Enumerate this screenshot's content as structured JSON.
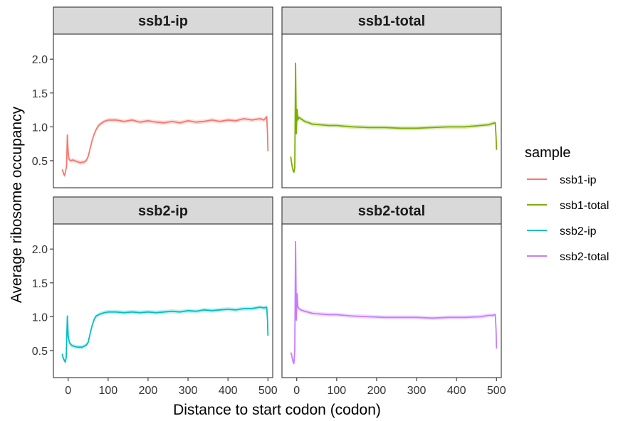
{
  "chart_data": {
    "type": "line",
    "xlabel": "Distance to start codon (codon)",
    "ylabel": "Average ribosome occupancy",
    "xlim": [
      -37,
      512
    ],
    "ylim": [
      0.1,
      2.37
    ],
    "xticks": [
      0,
      100,
      200,
      300,
      400,
      500
    ],
    "yticks": [
      0.5,
      1.0,
      1.5,
      2.0
    ],
    "ytick_labels": [
      "0.5",
      "1.0",
      "1.5",
      "2.0"
    ],
    "grid": false,
    "legend": {
      "title": "sample",
      "position": "right"
    },
    "panels": [
      {
        "title": "ssb1-ip",
        "series_name": "ssb1-ip",
        "color": "#F8766D",
        "points": [
          [
            -15,
            0.37
          ],
          [
            -13,
            0.34
          ],
          [
            -11,
            0.3
          ],
          [
            -9,
            0.28
          ],
          [
            -7,
            0.33
          ],
          [
            -4,
            0.42
          ],
          [
            -2,
            0.88
          ],
          [
            0,
            0.62
          ],
          [
            2,
            0.52
          ],
          [
            6,
            0.5
          ],
          [
            12,
            0.51
          ],
          [
            20,
            0.49
          ],
          [
            30,
            0.47
          ],
          [
            40,
            0.48
          ],
          [
            45,
            0.5
          ],
          [
            50,
            0.56
          ],
          [
            55,
            0.68
          ],
          [
            60,
            0.8
          ],
          [
            65,
            0.89
          ],
          [
            70,
            0.96
          ],
          [
            75,
            1.01
          ],
          [
            80,
            1.04
          ],
          [
            90,
            1.08
          ],
          [
            100,
            1.1
          ],
          [
            120,
            1.1
          ],
          [
            140,
            1.08
          ],
          [
            160,
            1.1
          ],
          [
            180,
            1.07
          ],
          [
            200,
            1.09
          ],
          [
            220,
            1.07
          ],
          [
            240,
            1.06
          ],
          [
            260,
            1.08
          ],
          [
            280,
            1.06
          ],
          [
            300,
            1.09
          ],
          [
            320,
            1.07
          ],
          [
            340,
            1.08
          ],
          [
            360,
            1.1
          ],
          [
            380,
            1.08
          ],
          [
            400,
            1.1
          ],
          [
            420,
            1.09
          ],
          [
            440,
            1.12
          ],
          [
            460,
            1.1
          ],
          [
            480,
            1.12
          ],
          [
            490,
            1.1
          ],
          [
            497,
            1.15
          ],
          [
            499,
            0.9
          ],
          [
            500,
            0.64
          ]
        ]
      },
      {
        "title": "ssb1-total",
        "series_name": "ssb1-total",
        "color": "#7CAE00",
        "points": [
          [
            -15,
            0.56
          ],
          [
            -13,
            0.47
          ],
          [
            -11,
            0.4
          ],
          [
            -9,
            0.35
          ],
          [
            -7,
            0.33
          ],
          [
            -5,
            0.4
          ],
          [
            -3,
            1.94
          ],
          [
            -1,
            0.9
          ],
          [
            1,
            1.26
          ],
          [
            3,
            1.1
          ],
          [
            5,
            1.14
          ],
          [
            10,
            1.12
          ],
          [
            20,
            1.08
          ],
          [
            40,
            1.04
          ],
          [
            60,
            1.03
          ],
          [
            80,
            1.02
          ],
          [
            100,
            1.02
          ],
          [
            140,
            1.0
          ],
          [
            180,
            0.99
          ],
          [
            220,
            0.99
          ],
          [
            260,
            0.98
          ],
          [
            300,
            0.98
          ],
          [
            340,
            0.99
          ],
          [
            380,
            1.0
          ],
          [
            420,
            1.0
          ],
          [
            460,
            1.02
          ],
          [
            480,
            1.03
          ],
          [
            490,
            1.05
          ],
          [
            497,
            1.06
          ],
          [
            499,
            0.85
          ],
          [
            500,
            0.66
          ]
        ]
      },
      {
        "title": "ssb2-ip",
        "series_name": "ssb2-ip",
        "color": "#00BFC4",
        "points": [
          [
            -15,
            0.45
          ],
          [
            -13,
            0.4
          ],
          [
            -11,
            0.37
          ],
          [
            -9,
            0.35
          ],
          [
            -7,
            0.33
          ],
          [
            -5,
            0.4
          ],
          [
            -2,
            1.01
          ],
          [
            0,
            0.72
          ],
          [
            3,
            0.62
          ],
          [
            8,
            0.58
          ],
          [
            15,
            0.56
          ],
          [
            25,
            0.55
          ],
          [
            35,
            0.55
          ],
          [
            45,
            0.58
          ],
          [
            50,
            0.62
          ],
          [
            55,
            0.75
          ],
          [
            60,
            0.87
          ],
          [
            65,
            0.96
          ],
          [
            70,
            1.01
          ],
          [
            80,
            1.04
          ],
          [
            90,
            1.06
          ],
          [
            100,
            1.07
          ],
          [
            120,
            1.07
          ],
          [
            140,
            1.06
          ],
          [
            160,
            1.07
          ],
          [
            180,
            1.06
          ],
          [
            200,
            1.07
          ],
          [
            220,
            1.06
          ],
          [
            240,
            1.07
          ],
          [
            260,
            1.08
          ],
          [
            280,
            1.07
          ],
          [
            300,
            1.09
          ],
          [
            320,
            1.08
          ],
          [
            340,
            1.1
          ],
          [
            360,
            1.09
          ],
          [
            380,
            1.1
          ],
          [
            400,
            1.11
          ],
          [
            420,
            1.1
          ],
          [
            440,
            1.12
          ],
          [
            460,
            1.12
          ],
          [
            480,
            1.14
          ],
          [
            490,
            1.13
          ],
          [
            497,
            1.14
          ],
          [
            499,
            0.95
          ],
          [
            500,
            0.72
          ]
        ]
      },
      {
        "title": "ssb2-total",
        "series_name": "ssb2-total",
        "color": "#C77CFF",
        "points": [
          [
            -15,
            0.47
          ],
          [
            -13,
            0.44
          ],
          [
            -11,
            0.38
          ],
          [
            -9,
            0.33
          ],
          [
            -7,
            0.31
          ],
          [
            -5,
            0.5
          ],
          [
            -3,
            2.11
          ],
          [
            -1,
            0.95
          ],
          [
            1,
            1.34
          ],
          [
            3,
            1.15
          ],
          [
            5,
            1.12
          ],
          [
            10,
            1.1
          ],
          [
            20,
            1.08
          ],
          [
            40,
            1.05
          ],
          [
            60,
            1.04
          ],
          [
            80,
            1.03
          ],
          [
            100,
            1.03
          ],
          [
            140,
            1.01
          ],
          [
            180,
            1.0
          ],
          [
            220,
            0.99
          ],
          [
            260,
            0.99
          ],
          [
            300,
            0.99
          ],
          [
            340,
            0.98
          ],
          [
            380,
            0.99
          ],
          [
            420,
            0.99
          ],
          [
            460,
            1.0
          ],
          [
            480,
            1.02
          ],
          [
            490,
            1.02
          ],
          [
            497,
            1.03
          ],
          [
            499,
            0.8
          ],
          [
            500,
            0.53
          ]
        ]
      }
    ]
  }
}
